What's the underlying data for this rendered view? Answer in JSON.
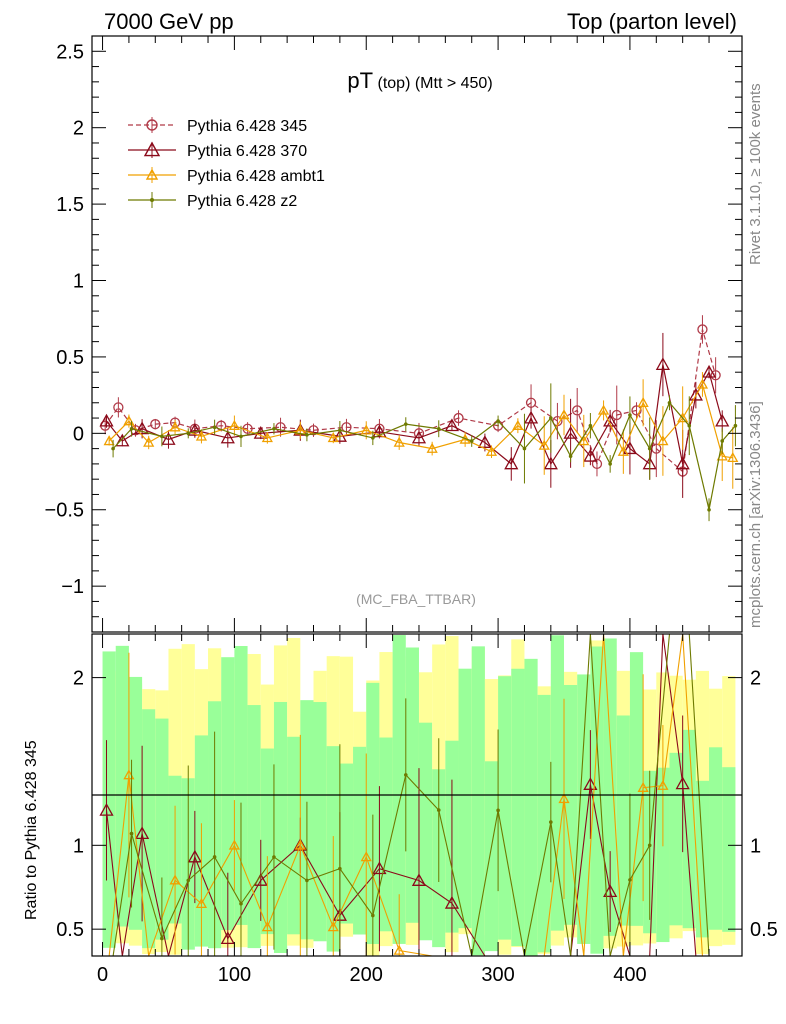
{
  "header": {
    "left": "7000 GeV pp",
    "right": "Top (parton level)"
  },
  "side_labels": {
    "rivet": "Rivet 3.1.10, ≥ 100k events",
    "mcplots": "mcplots.cern.ch [arXiv:1306.3436]"
  },
  "plot": {
    "title_main": "pT",
    "title_sub": " (top) (Mtt > 450)",
    "watermark": "(MC_FBA_TTBAR)"
  },
  "ratio": {
    "ylabel": "Ratio to Pythia 6.428 345"
  },
  "legend": [
    {
      "label": "Pythia 6.428 345",
      "color": "#b03a48",
      "marker": "circle",
      "dash": true
    },
    {
      "label": "Pythia 6.428 370",
      "color": "#8b0a1a",
      "marker": "triangle",
      "dash": false
    },
    {
      "label": "Pythia 6.428 ambt1",
      "color": "#f0a000",
      "marker": "triangle",
      "dash": false
    },
    {
      "label": "Pythia 6.428 z2",
      "color": "#6e7a00",
      "marker": "dot",
      "dash": false
    }
  ],
  "chart_data": {
    "type": "scatter",
    "main": {
      "xlim": [
        -8,
        485
      ],
      "ylim": [
        -1.3,
        2.6
      ],
      "yticks": [
        -1,
        -0.5,
        0,
        0.5,
        1,
        1.5,
        2,
        2.5
      ],
      "ytick_labels": [
        "−1",
        "−0.5",
        "0",
        "0.5",
        "1",
        "1.5",
        "2",
        "2.5"
      ]
    },
    "ratio": {
      "ylim": [
        0.34,
        2.26
      ],
      "yticks": [
        0.5,
        1,
        2
      ],
      "ytick_labels": [
        "0.5",
        "1",
        "2"
      ]
    },
    "xticks": [
      0,
      100,
      200,
      300,
      400
    ],
    "xtick_labels": [
      "0",
      "100",
      "200",
      "300",
      "400"
    ],
    "series": [
      {
        "name": "Pythia 6.428 345",
        "x": [
          2,
          12,
          25,
          40,
          55,
          70,
          90,
          110,
          135,
          160,
          185,
          210,
          240,
          270,
          300,
          325,
          345,
          360,
          375,
          390,
          405,
          420,
          440,
          455,
          465
        ],
        "y": [
          0.05,
          0.17,
          0.02,
          0.06,
          0.07,
          0.03,
          0.05,
          0.03,
          0.04,
          0.02,
          0.04,
          0.03,
          0.0,
          0.1,
          0.05,
          0.2,
          0.08,
          0.15,
          -0.2,
          0.12,
          0.15,
          -0.1,
          -0.25,
          0.68,
          0.38
        ]
      },
      {
        "name": "Pythia 6.428 370",
        "x": [
          3,
          15,
          30,
          50,
          70,
          95,
          120,
          150,
          180,
          210,
          240,
          265,
          290,
          310,
          325,
          340,
          355,
          370,
          385,
          400,
          415,
          425,
          440,
          450,
          460,
          470
        ],
        "y": [
          0.08,
          -0.05,
          0.03,
          -0.04,
          0.02,
          -0.03,
          0.0,
          0.02,
          -0.02,
          0.01,
          -0.03,
          0.05,
          -0.06,
          -0.2,
          0.1,
          -0.2,
          0.0,
          -0.15,
          0.08,
          -0.1,
          -0.2,
          0.45,
          -0.2,
          0.25,
          0.4,
          0.08
        ]
      },
      {
        "name": "Pythia 6.428 ambt1",
        "x": [
          5,
          20,
          35,
          55,
          75,
          100,
          125,
          150,
          175,
          200,
          225,
          250,
          275,
          295,
          315,
          335,
          350,
          365,
          380,
          395,
          410,
          425,
          440,
          455,
          470,
          478
        ],
        "y": [
          -0.05,
          0.08,
          -0.06,
          0.04,
          -0.02,
          0.05,
          -0.03,
          0.02,
          -0.03,
          0.02,
          -0.06,
          -0.1,
          -0.04,
          -0.12,
          0.05,
          -0.08,
          0.12,
          -0.05,
          0.15,
          -0.12,
          0.2,
          -0.05,
          0.1,
          0.32,
          -0.15,
          -0.16
        ]
      },
      {
        "name": "Pythia 6.428 z2",
        "x": [
          8,
          22,
          45,
          65,
          85,
          105,
          130,
          155,
          180,
          205,
          230,
          255,
          280,
          300,
          320,
          340,
          355,
          370,
          385,
          400,
          415,
          430,
          445,
          460,
          470,
          480
        ],
        "y": [
          -0.1,
          0.03,
          -0.02,
          0.0,
          0.04,
          -0.02,
          0.03,
          -0.01,
          0.02,
          -0.03,
          0.06,
          0.03,
          -0.05,
          0.08,
          -0.1,
          0.1,
          -0.15,
          0.05,
          -0.2,
          0.12,
          -0.1,
          0.2,
          0.05,
          -0.5,
          -0.05,
          0.05
        ]
      }
    ]
  }
}
